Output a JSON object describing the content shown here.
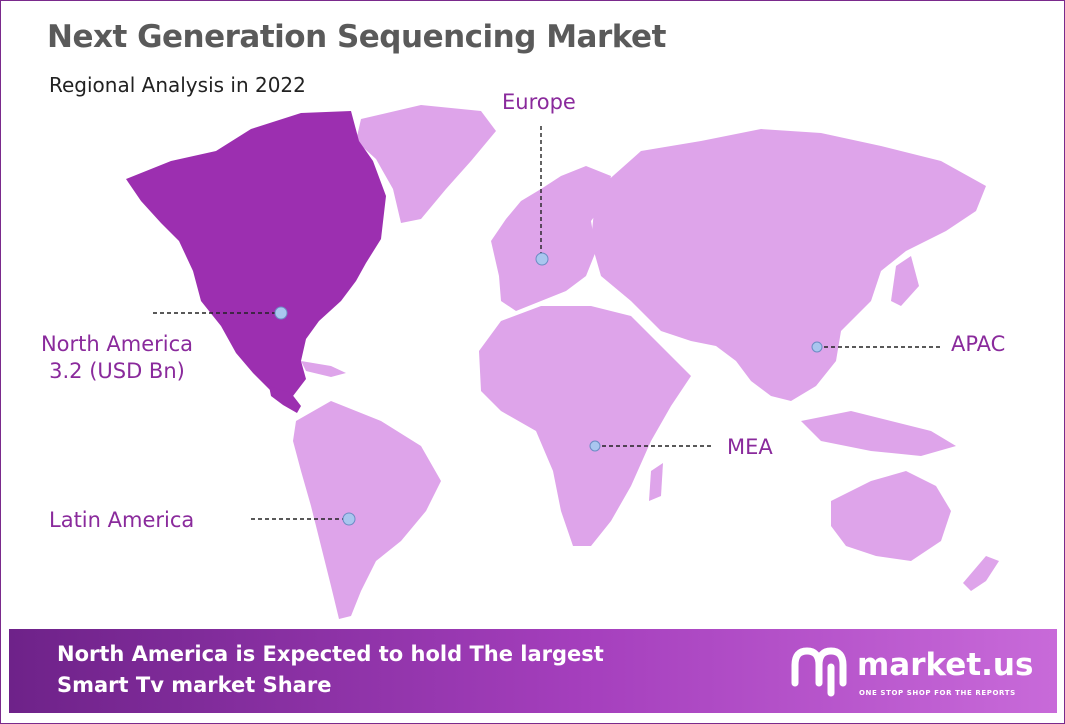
{
  "header": {
    "title": "Next Generation Sequencing Market",
    "subtitle": "Regional Analysis in 2022"
  },
  "regions": [
    {
      "key": "north_america",
      "name": "North America",
      "value": "3.2 (USD Bn)",
      "highlighted": true
    },
    {
      "key": "europe",
      "name": "Europe",
      "value": "",
      "highlighted": false
    },
    {
      "key": "apac",
      "name": "APAC",
      "value": "",
      "highlighted": false
    },
    {
      "key": "mea",
      "name": "MEA",
      "value": "",
      "highlighted": false
    },
    {
      "key": "latin_america",
      "name": "Latin America",
      "value": "",
      "highlighted": false
    }
  ],
  "colors": {
    "highlight": "#9c2fb0",
    "land": "#dea4ea",
    "label": "#8a2a9c",
    "marker": "#a9c6ef",
    "banner_start": "#6e2289",
    "banner_end": "#c86ad9"
  },
  "banner": {
    "line1": "North America is Expected to hold The largest",
    "line2": "Smart Tv market Share"
  },
  "brand": {
    "name": "market.us",
    "tagline": "ONE STOP SHOP FOR THE REPORTS",
    "icon": "market-us-logo-icon"
  }
}
